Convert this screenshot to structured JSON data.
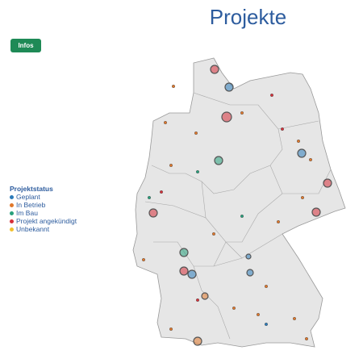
{
  "header": {
    "title": "Projekte"
  },
  "button": {
    "label": "Infos"
  },
  "legend": {
    "title": "Projektstatus",
    "items": [
      {
        "label": "Geplant",
        "color": "#2b7bba"
      },
      {
        "label": "In Betrieb",
        "color": "#e0782c"
      },
      {
        "label": "Im Bau",
        "color": "#27a07c"
      },
      {
        "label": "Projekt angekündigt",
        "color": "#d6303a"
      },
      {
        "label": "Unbekannt",
        "color": "#f2c12e"
      }
    ]
  }
}
